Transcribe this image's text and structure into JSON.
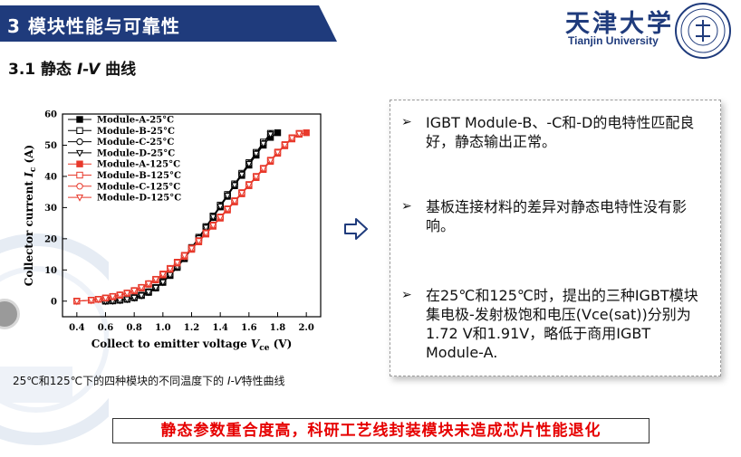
{
  "slide": {
    "title": "3 模块性能与可靠性",
    "section_prefix": "3.1 静态 ",
    "section_italic": "I-V",
    "section_suffix": " 曲线",
    "caption_pre": "25℃和125℃下的四种模块的不同温度下的 ",
    "caption_italic": "I-V",
    "caption_post": "特性曲线",
    "bottom_banner": "静态参数重合度高，科研工艺线封装模块未造成芯片性能退化"
  },
  "logo": {
    "cn": "天津大学",
    "en": "Tianjin University"
  },
  "icons": {
    "arrow": "right-arrow-icon",
    "bullet": "arrowhead-bullet-icon"
  },
  "panel": {
    "bullets": [
      "IGBT Module-B、-C和-D的电特性匹配良好，静态输出正常。",
      "基板连接材料的差异对静态电特性没有影响。",
      "在25℃和125℃时，提出的三种IGBT模块集电极-发射极饱和电压(Vce(sat))分别为1.72 V和1.91V，略低于商用IGBT Module-A."
    ]
  },
  "chart_data": {
    "type": "line",
    "xlabel_main": "Collect to emitter voltage ",
    "xlabel_var": "V",
    "xlabel_sub": "ce",
    "xlabel_unit": " (V)",
    "ylabel_main": "Collector current ",
    "ylabel_var": "I",
    "ylabel_sub": "c",
    "ylabel_unit": " (A)",
    "xlim": [
      0.3,
      2.1
    ],
    "ylim": [
      -5,
      60
    ],
    "xticks": [
      "0.4",
      "0.6",
      "0.8",
      "1.0",
      "1.2",
      "1.4",
      "1.6",
      "1.8",
      "2.0"
    ],
    "yticks": [
      "0",
      "10",
      "20",
      "30",
      "40",
      "50",
      "60"
    ],
    "legend_position": "top-left",
    "series": [
      {
        "name": "Module-A-25°C",
        "color": "#000000",
        "marker": "square-filled",
        "x": [
          0.6,
          0.65,
          0.7,
          0.75,
          0.8,
          0.85,
          0.9,
          0.95,
          1.0,
          1.05,
          1.1,
          1.15,
          1.2,
          1.25,
          1.3,
          1.35,
          1.4,
          1.45,
          1.5,
          1.55,
          1.6,
          1.65,
          1.7,
          1.75,
          1.8
        ],
        "y": [
          0,
          0.1,
          0.3,
          0.6,
          1.1,
          1.8,
          2.8,
          4.2,
          6.0,
          8.2,
          10.8,
          13.6,
          16.7,
          20.0,
          23.4,
          26.8,
          30.2,
          33.6,
          37.0,
          40.3,
          43.6,
          46.8,
          50.0,
          52.5,
          54.0
        ]
      },
      {
        "name": "Module-B-25°C",
        "color": "#000000",
        "marker": "square-open",
        "x": [
          0.6,
          0.65,
          0.7,
          0.75,
          0.8,
          0.85,
          0.9,
          0.95,
          1.0,
          1.05,
          1.1,
          1.15,
          1.2,
          1.25,
          1.3,
          1.35,
          1.4,
          1.45,
          1.5,
          1.55,
          1.6,
          1.65,
          1.7,
          1.75
        ],
        "y": [
          0,
          0.1,
          0.3,
          0.6,
          1.1,
          1.9,
          3.0,
          4.4,
          6.3,
          8.6,
          11.2,
          14.0,
          17.2,
          20.5,
          23.9,
          27.3,
          30.8,
          34.2,
          37.6,
          41.0,
          44.4,
          47.7,
          51.0,
          53.8
        ]
      },
      {
        "name": "Module-C-25°C",
        "color": "#000000",
        "marker": "circle-open",
        "x": [
          0.6,
          0.65,
          0.7,
          0.75,
          0.8,
          0.85,
          0.9,
          0.95,
          1.0,
          1.05,
          1.1,
          1.15,
          1.2,
          1.25,
          1.3,
          1.35,
          1.4,
          1.45,
          1.5,
          1.55,
          1.6,
          1.65,
          1.7,
          1.75
        ],
        "y": [
          0,
          0.1,
          0.3,
          0.6,
          1.1,
          1.9,
          3.0,
          4.4,
          6.2,
          8.5,
          11.0,
          13.9,
          17.0,
          20.3,
          23.7,
          27.1,
          30.5,
          33.9,
          37.3,
          40.7,
          44.1,
          47.4,
          50.6,
          53.6
        ]
      },
      {
        "name": "Module-D-25°C",
        "color": "#000000",
        "marker": "triangle-down-open",
        "x": [
          0.6,
          0.65,
          0.7,
          0.75,
          0.8,
          0.85,
          0.9,
          0.95,
          1.0,
          1.05,
          1.1,
          1.15,
          1.2,
          1.25,
          1.3,
          1.35,
          1.4,
          1.45,
          1.5,
          1.55,
          1.6,
          1.65,
          1.7,
          1.75
        ],
        "y": [
          0,
          0.1,
          0.3,
          0.6,
          1.1,
          1.8,
          2.9,
          4.3,
          6.1,
          8.4,
          11.0,
          13.8,
          16.9,
          20.2,
          23.6,
          27.0,
          30.4,
          33.8,
          37.2,
          40.6,
          44.0,
          47.3,
          50.5,
          53.5
        ]
      },
      {
        "name": "Module-A-125°C",
        "color": "#e8392b",
        "marker": "square-filled",
        "x": [
          0.4,
          0.5,
          0.55,
          0.6,
          0.65,
          0.7,
          0.75,
          0.8,
          0.85,
          0.9,
          0.95,
          1.0,
          1.05,
          1.1,
          1.15,
          1.2,
          1.25,
          1.3,
          1.35,
          1.4,
          1.45,
          1.5,
          1.55,
          1.6,
          1.65,
          1.7,
          1.75,
          1.8,
          1.85,
          1.9,
          1.95,
          2.0
        ],
        "y": [
          0,
          0.3,
          0.6,
          1.0,
          1.4,
          1.9,
          2.5,
          3.3,
          4.2,
          5.4,
          6.8,
          8.4,
          10.2,
          12.2,
          14.3,
          16.6,
          19.0,
          21.5,
          24.0,
          26.6,
          29.2,
          31.8,
          34.4,
          37.0,
          39.6,
          42.2,
          44.8,
          47.4,
          49.8,
          52.0,
          53.5,
          54.0
        ]
      },
      {
        "name": "Module-B-125°C",
        "color": "#e8392b",
        "marker": "square-open",
        "x": [
          0.4,
          0.5,
          0.55,
          0.6,
          0.65,
          0.7,
          0.75,
          0.8,
          0.85,
          0.9,
          0.95,
          1.0,
          1.05,
          1.1,
          1.15,
          1.2,
          1.25,
          1.3,
          1.35,
          1.4,
          1.45,
          1.5,
          1.55,
          1.6,
          1.65,
          1.7,
          1.75,
          1.8,
          1.85,
          1.9,
          1.95
        ],
        "y": [
          0,
          0.3,
          0.6,
          1.0,
          1.5,
          2.0,
          2.6,
          3.4,
          4.4,
          5.6,
          7.0,
          8.7,
          10.5,
          12.5,
          14.7,
          17.0,
          19.4,
          21.9,
          24.4,
          27.0,
          29.6,
          32.2,
          34.8,
          37.4,
          40.0,
          42.6,
          45.2,
          47.8,
          50.2,
          52.4,
          53.8
        ]
      },
      {
        "name": "Module-C-125°C",
        "color": "#e8392b",
        "marker": "circle-open",
        "x": [
          0.4,
          0.5,
          0.55,
          0.6,
          0.65,
          0.7,
          0.75,
          0.8,
          0.85,
          0.9,
          0.95,
          1.0,
          1.05,
          1.1,
          1.15,
          1.2,
          1.25,
          1.3,
          1.35,
          1.4,
          1.45,
          1.5,
          1.55,
          1.6,
          1.65,
          1.7,
          1.75,
          1.8,
          1.85,
          1.9,
          1.95
        ],
        "y": [
          0,
          0.3,
          0.6,
          1.0,
          1.5,
          2.0,
          2.6,
          3.4,
          4.4,
          5.6,
          7.0,
          8.6,
          10.4,
          12.4,
          14.6,
          16.9,
          19.3,
          21.8,
          24.3,
          26.9,
          29.5,
          32.1,
          34.7,
          37.3,
          39.9,
          42.5,
          45.1,
          47.7,
          50.1,
          52.3,
          53.7
        ]
      },
      {
        "name": "Module-D-125°C",
        "color": "#e8392b",
        "marker": "triangle-down-open",
        "x": [
          0.4,
          0.5,
          0.55,
          0.6,
          0.65,
          0.7,
          0.75,
          0.8,
          0.85,
          0.9,
          0.95,
          1.0,
          1.05,
          1.1,
          1.15,
          1.2,
          1.25,
          1.3,
          1.35,
          1.4,
          1.45,
          1.5,
          1.55,
          1.6,
          1.65,
          1.7,
          1.75,
          1.8,
          1.85,
          1.9,
          1.95
        ],
        "y": [
          0,
          0.3,
          0.6,
          1.0,
          1.5,
          2.0,
          2.6,
          3.4,
          4.4,
          5.6,
          7.0,
          8.6,
          10.4,
          12.4,
          14.6,
          16.9,
          19.3,
          21.8,
          24.3,
          26.9,
          29.5,
          32.1,
          34.7,
          37.3,
          39.9,
          42.5,
          45.1,
          47.7,
          50.1,
          52.3,
          53.7
        ]
      }
    ]
  }
}
